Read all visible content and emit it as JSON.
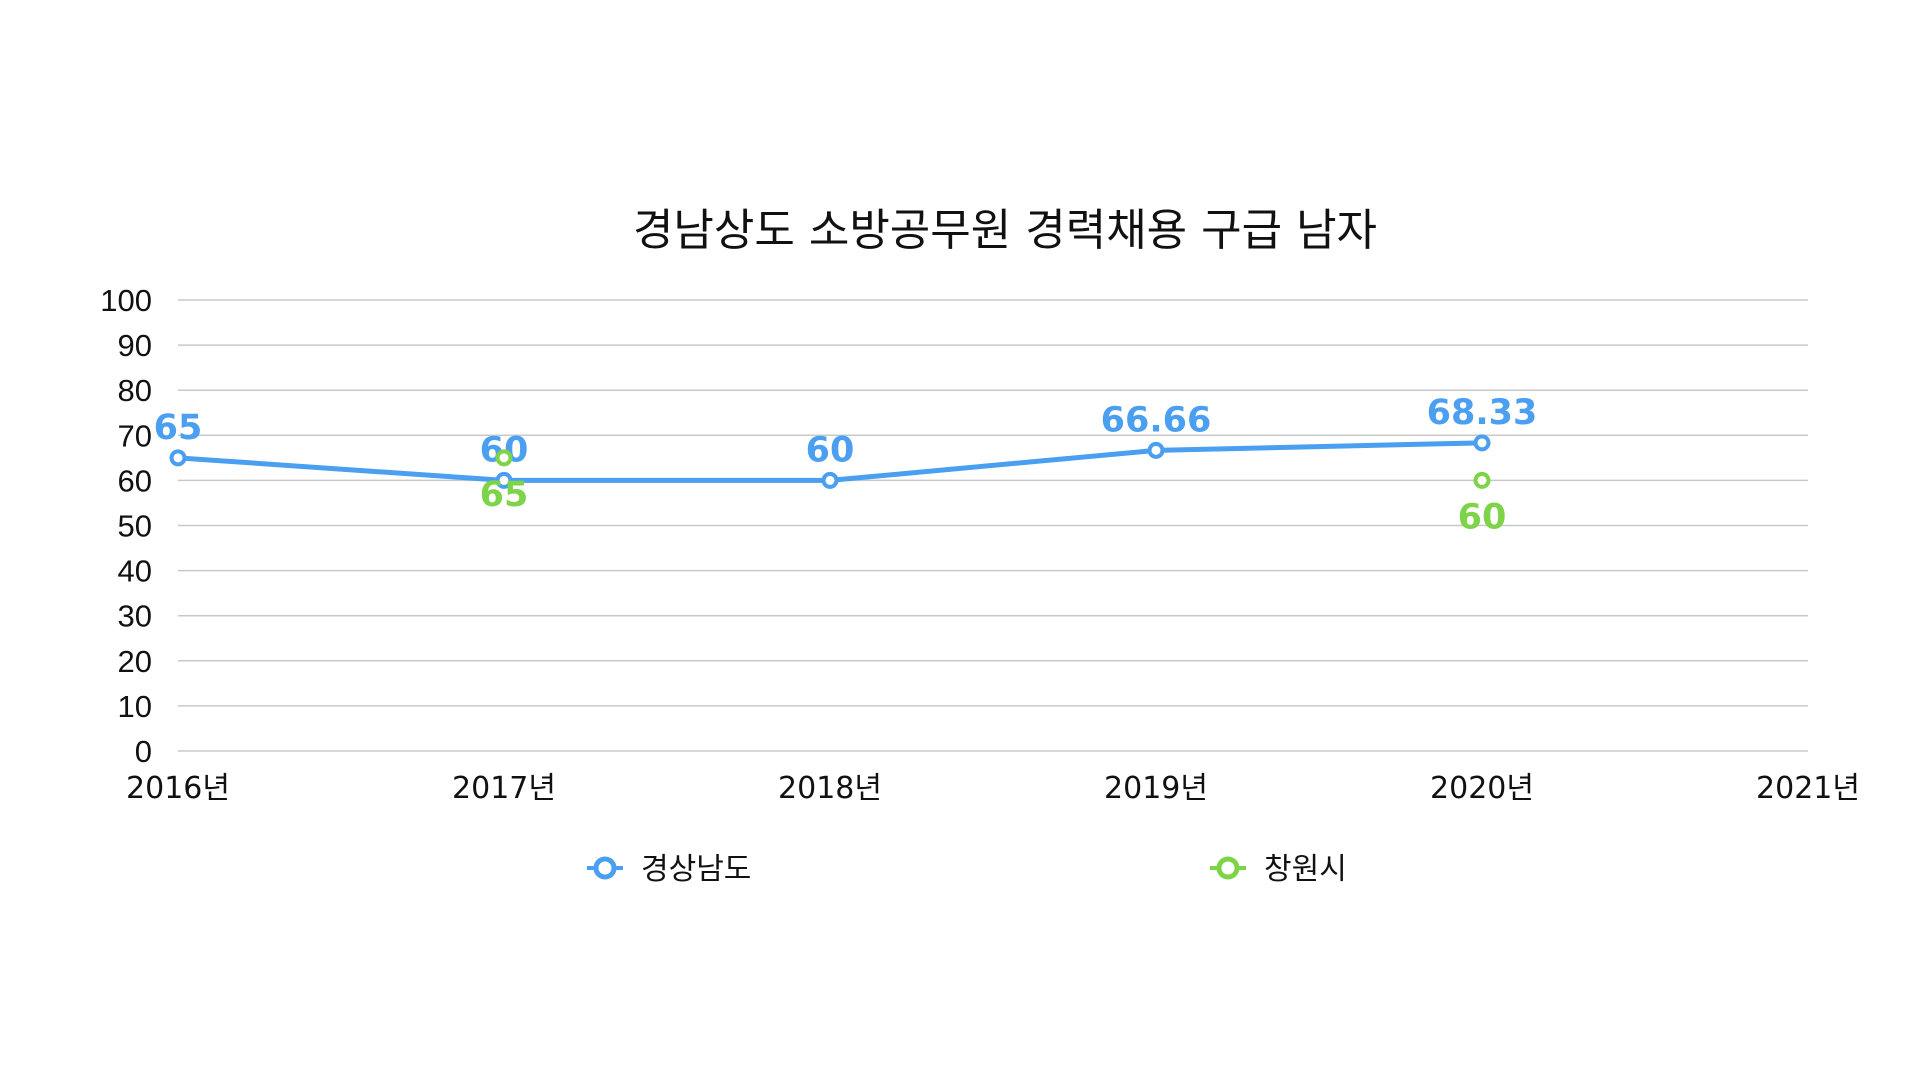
{
  "chart_data": {
    "type": "line",
    "title": "경남상도 소방공무원 경력채용 구급 남자",
    "xlabel": "",
    "ylabel": "",
    "categories": [
      "2016년",
      "2017년",
      "2018년",
      "2019년",
      "2020년",
      "2021년"
    ],
    "ylim": [
      0,
      100
    ],
    "yticks": [
      0,
      10,
      20,
      30,
      40,
      50,
      60,
      70,
      80,
      90,
      100
    ],
    "grid": true,
    "legend_position": "bottom",
    "series": [
      {
        "name": "경상남도",
        "color": "#4a9ff0",
        "line": true,
        "values": [
          65,
          60,
          60,
          66.66,
          68.33,
          null
        ],
        "labels": [
          "65",
          "60",
          "60",
          "66.66",
          "68.33",
          ""
        ],
        "label_position": "above"
      },
      {
        "name": "창원시",
        "color": "#7ed448",
        "line": false,
        "values": [
          null,
          65,
          null,
          null,
          60,
          null
        ],
        "labels": [
          "",
          "65",
          "",
          "",
          "60",
          ""
        ],
        "label_position": "below"
      }
    ]
  }
}
